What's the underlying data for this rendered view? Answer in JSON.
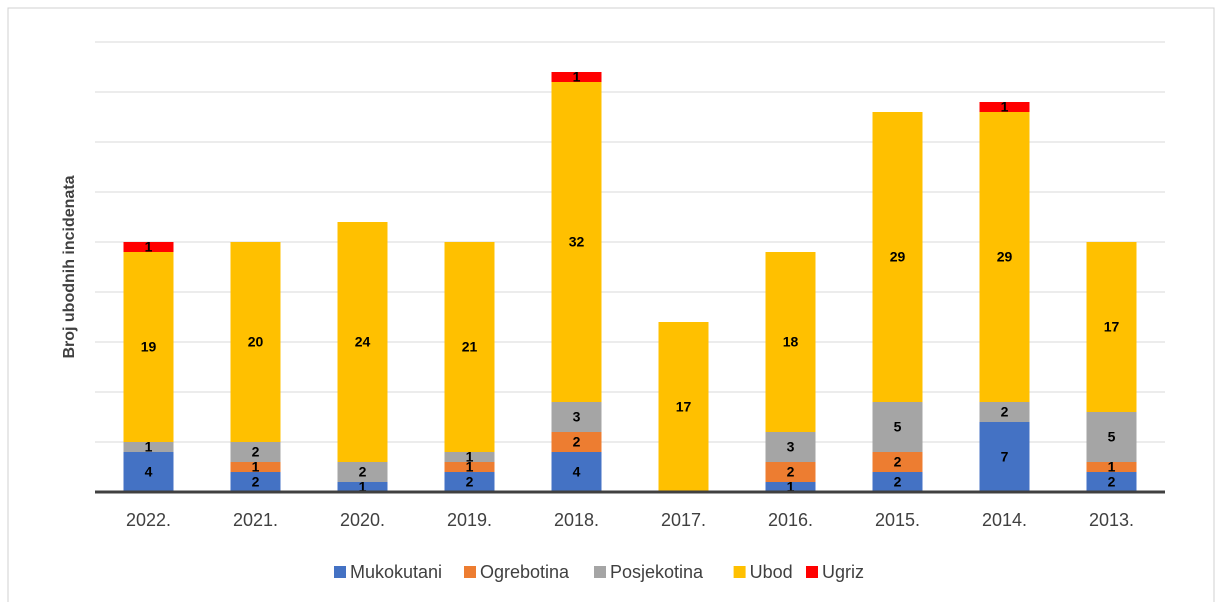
{
  "chart_data": {
    "type": "stacked_bar",
    "y_label": "Broj ubodnih incidenata",
    "categories": [
      "2022.",
      "2021.",
      "2020.",
      "2019.",
      "2018.",
      "2017.",
      "2016.",
      "2015.",
      "2014.",
      "2013."
    ],
    "series": [
      {
        "name": "Mukokutani",
        "color": "#4472c4",
        "values": [
          4,
          2,
          1,
          2,
          4,
          null,
          1,
          2,
          7,
          2
        ]
      },
      {
        "name": "Ogrebotina",
        "color": "#ed7d31",
        "values": [
          null,
          1,
          null,
          1,
          2,
          null,
          2,
          2,
          null,
          1
        ]
      },
      {
        "name": "Posjekotina",
        "color": "#a5a5a5",
        "values": [
          1,
          2,
          2,
          1,
          3,
          null,
          3,
          5,
          2,
          5
        ]
      },
      {
        "name": "Ubod",
        "color": "#ffc000",
        "values": [
          19,
          20,
          24,
          21,
          32,
          17,
          18,
          29,
          29,
          17
        ]
      },
      {
        "name": "Ugriz",
        "color": "#ff0000",
        "values": [
          1,
          null,
          null,
          null,
          1,
          null,
          null,
          null,
          1,
          null
        ]
      }
    ],
    "ylim": [
      0,
      45
    ],
    "yticks": [
      0,
      5,
      10,
      15,
      20,
      25,
      30,
      35,
      40,
      45
    ],
    "grid": true,
    "legend": "bottom"
  }
}
